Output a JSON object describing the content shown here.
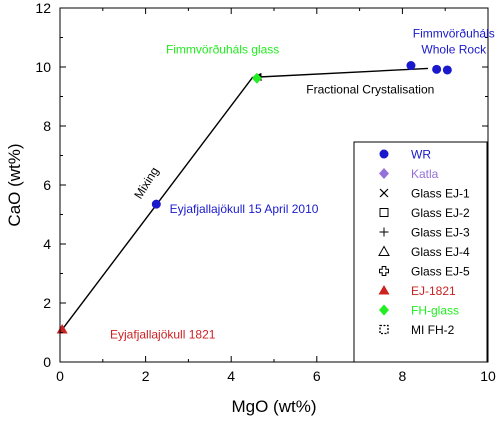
{
  "chart_data": {
    "type": "scatter",
    "xlabel": "MgO  (wt%)",
    "ylabel": "CaO  (wt%)",
    "xlim": [
      0,
      10
    ],
    "ylim": [
      0,
      12
    ],
    "x_ticks": [
      0,
      2,
      4,
      6,
      8,
      10
    ],
    "y_ticks": [
      0,
      2,
      4,
      6,
      8,
      10,
      12
    ],
    "grid": false,
    "legend_position": "bottom-right",
    "series": [
      {
        "name": "WR",
        "marker": "circle",
        "color": "#1a1acc",
        "points": [
          [
            2.25,
            5.35
          ],
          [
            8.2,
            10.05
          ],
          [
            8.8,
            9.92
          ],
          [
            9.05,
            9.9
          ]
        ]
      },
      {
        "name": "Katla",
        "marker": "diamond",
        "color": "#9370db",
        "points": []
      },
      {
        "name": "Glass EJ-1",
        "marker": "x",
        "color": "#000000",
        "points": []
      },
      {
        "name": "Glass EJ-2",
        "marker": "square-open",
        "color": "#000000",
        "points": []
      },
      {
        "name": "Glass EJ-3",
        "marker": "plus",
        "color": "#000000",
        "points": []
      },
      {
        "name": "Glass EJ-4",
        "marker": "triangle-open",
        "color": "#000000",
        "points": []
      },
      {
        "name": "Glass EJ-5",
        "marker": "cross-open",
        "color": "#000000",
        "points": []
      },
      {
        "name": "EJ-1821",
        "marker": "triangle",
        "color": "#cc2222",
        "points": [
          [
            0.05,
            1.1
          ]
        ]
      },
      {
        "name": "FH-glass",
        "marker": "diamond",
        "color": "#22ee22",
        "points": [
          [
            4.6,
            9.62
          ]
        ]
      },
      {
        "name": "MI FH-2",
        "marker": "square-dashed",
        "color": "#000000",
        "points": []
      }
    ],
    "lines": [
      {
        "label": "Mixing",
        "points": [
          [
            0.05,
            1.1
          ],
          [
            4.5,
            9.65
          ]
        ]
      },
      {
        "label": "Fractional Crystalisation",
        "arrow": true,
        "points": [
          [
            8.6,
            9.95
          ],
          [
            4.5,
            9.65
          ]
        ]
      }
    ],
    "annotations": [
      {
        "text": "Fimmvörðuháls glass",
        "x": 3.8,
        "y": 10.45,
        "color": "#22ee22"
      },
      {
        "text": "Fimmvörðuháls",
        "x": 9.2,
        "y": 11.0,
        "color": "#1a1acc"
      },
      {
        "text": "Whole Rock",
        "x": 9.2,
        "y": 10.45,
        "color": "#1a1acc"
      },
      {
        "text": "Fractional Crystalisation",
        "x": 7.25,
        "y": 9.1,
        "color": "#000000"
      },
      {
        "text": "Eyjafjallajökull 15 April 2010",
        "x": 4.3,
        "y": 5.05,
        "color": "#1a1acc"
      },
      {
        "text": "Eyjafjallajökull 1821",
        "x": 2.4,
        "y": 0.8,
        "color": "#cc2222"
      },
      {
        "text": "Mixing",
        "x": 2.1,
        "y": 6.0,
        "color": "#000000",
        "rotate": -58
      }
    ]
  }
}
